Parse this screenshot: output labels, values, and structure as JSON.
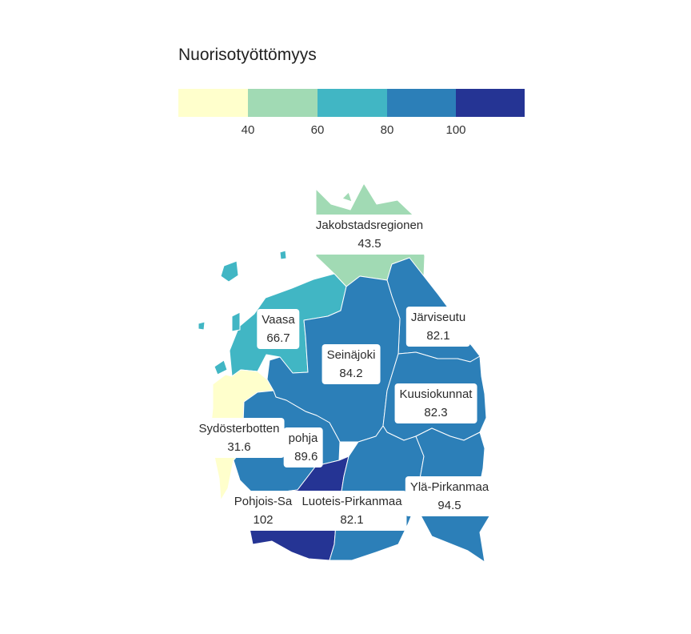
{
  "legend": {
    "title": "Nuorisotyöttömyys",
    "bins": [
      {
        "color": "#ffffcc"
      },
      {
        "color": "#a1dab4"
      },
      {
        "color": "#41b6c4"
      },
      {
        "color": "#2c7fb8"
      },
      {
        "color": "#253494"
      }
    ],
    "ticks": [
      "40",
      "60",
      "80",
      "100"
    ]
  },
  "regions": [
    {
      "name": "Jakobstadsregionen",
      "value": "43.5",
      "color": "#a1dab4"
    },
    {
      "name": "Vaasa",
      "value": "66.7",
      "color": "#41b6c4"
    },
    {
      "name": "Järviseutu",
      "value": "82.1",
      "color": "#2c7fb8"
    },
    {
      "name": "Seinäjoki",
      "value": "84.2",
      "color": "#2c7fb8"
    },
    {
      "name": "Kuusiokunnat",
      "value": "82.3",
      "color": "#2c7fb8"
    },
    {
      "name": "Sydösterbotten",
      "value": "31.6",
      "color": "#ffffcc"
    },
    {
      "name": "pohja",
      "value": "89.6",
      "color": "#2c7fb8"
    },
    {
      "name": "Ylä-Pirkanmaa",
      "value": "94.5",
      "color": "#2c7fb8"
    },
    {
      "name": "Pohjois-Sa",
      "value": "102",
      "color": "#253494"
    },
    {
      "name": "Luoteis-Pirkanmaa",
      "value": "82.1",
      "color": "#2c7fb8"
    }
  ]
}
